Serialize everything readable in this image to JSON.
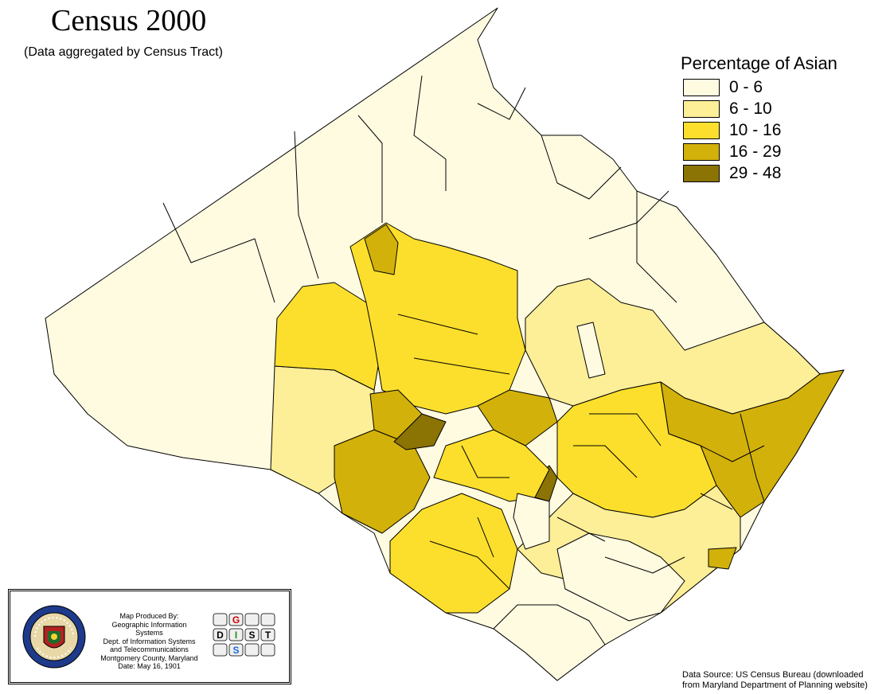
{
  "title": "Census 2000",
  "subtitle": "(Data aggregated by Census Tract)",
  "legend": {
    "title": "Percentage of Asian",
    "classes": [
      {
        "label": "0 - 6",
        "color": "#fffbe1"
      },
      {
        "label": "6 - 10",
        "color": "#fdee98"
      },
      {
        "label": "10 - 16",
        "color": "#fcdf2c"
      },
      {
        "label": "16 - 29",
        "color": "#d2b10a"
      },
      {
        "label": "29 - 48",
        "color": "#8b7304"
      }
    ]
  },
  "credit": {
    "lines": [
      "Map Produced By:",
      "Geographic Information Systems",
      "Dept. of Information Systems",
      "and Telecommunications",
      "Montgomery County, Maryland",
      "Date: May 16, 1901"
    ],
    "seal_text": "MONTGOMERY COUNTY MARYLAND 17 76",
    "logo_letters": [
      "G",
      "D",
      "I",
      "S",
      "T",
      "S"
    ]
  },
  "source": {
    "line1": "Data Source:  US Census Bureau (downloaded",
    "line2": "from Maryland Department of Planning website)"
  }
}
